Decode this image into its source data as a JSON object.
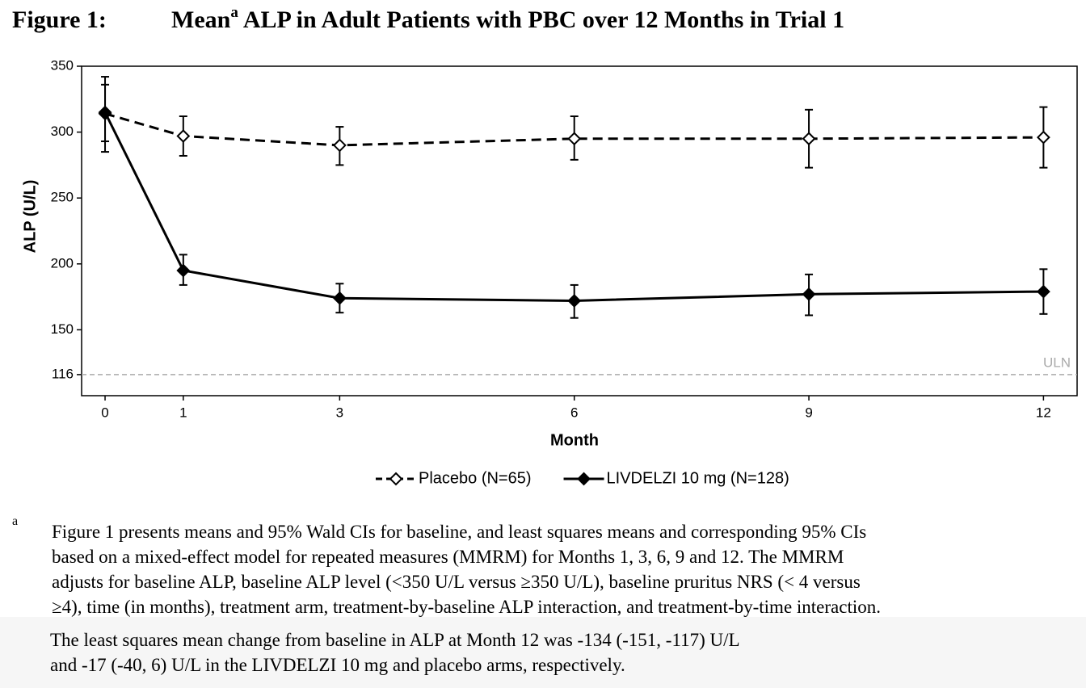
{
  "chart_data": {
    "type": "line",
    "figure_label": "Figure 1:",
    "title_prefix": "Mean",
    "title_sup": "a",
    "title_rest": "ALP in Adult Patients with PBC over 12 Months in Trial 1",
    "x_label": "Month",
    "y_label": "ALP (U/L)",
    "x": [
      0,
      1,
      3,
      6,
      9,
      12
    ],
    "xlim": [
      -0.3,
      12.43
    ],
    "xticks": [
      0,
      1,
      3,
      6,
      9,
      12
    ],
    "ylim": [
      100,
      350
    ],
    "yticks": [
      116,
      150,
      200,
      250,
      300,
      350
    ],
    "reference_line": {
      "value": 116,
      "label": "ULN",
      "color": "#aaaaaa"
    },
    "series": [
      {
        "name": "Placebo (N=65)",
        "color": "#000000",
        "dashed": true,
        "marker_filled": false,
        "values": [
          314,
          297,
          290,
          295,
          295,
          296
        ],
        "ci_low": [
          285,
          282,
          275,
          279,
          273,
          273
        ],
        "ci_high": [
          342,
          312,
          304,
          312,
          317,
          319
        ]
      },
      {
        "name": "LIVDELZI 10 mg (N=128)",
        "color": "#000000",
        "dashed": false,
        "marker_filled": true,
        "values": [
          315,
          195,
          174,
          172,
          177,
          179
        ],
        "ci_low": [
          293,
          184,
          163,
          159,
          161,
          162
        ],
        "ci_high": [
          336,
          207,
          185,
          184,
          192,
          196
        ]
      }
    ]
  },
  "footnote": {
    "marker": "a",
    "lines": [
      "Figure 1 presents means and 95% Wald CIs for baseline, and least squares means and corresponding 95% CIs",
      "based on a mixed-effect model for repeated measures (MMRM) for Months 1, 3, 6, 9 and 12. The MMRM",
      "adjusts for baseline ALP, baseline ALP level (<350 U/L versus ≥350 U/L), baseline pruritus NRS (< 4 versus",
      "≥4), time (in months), treatment arm, treatment-by-baseline ALP interaction, and treatment-by-time interaction."
    ]
  },
  "note": {
    "lines": [
      "The least squares mean change from baseline in ALP at Month 12 was -134 (-151, -117) U/L",
      "and -17 (-40, 6) U/L in the LIVDELZI 10 mg and placebo arms, respectively."
    ]
  }
}
